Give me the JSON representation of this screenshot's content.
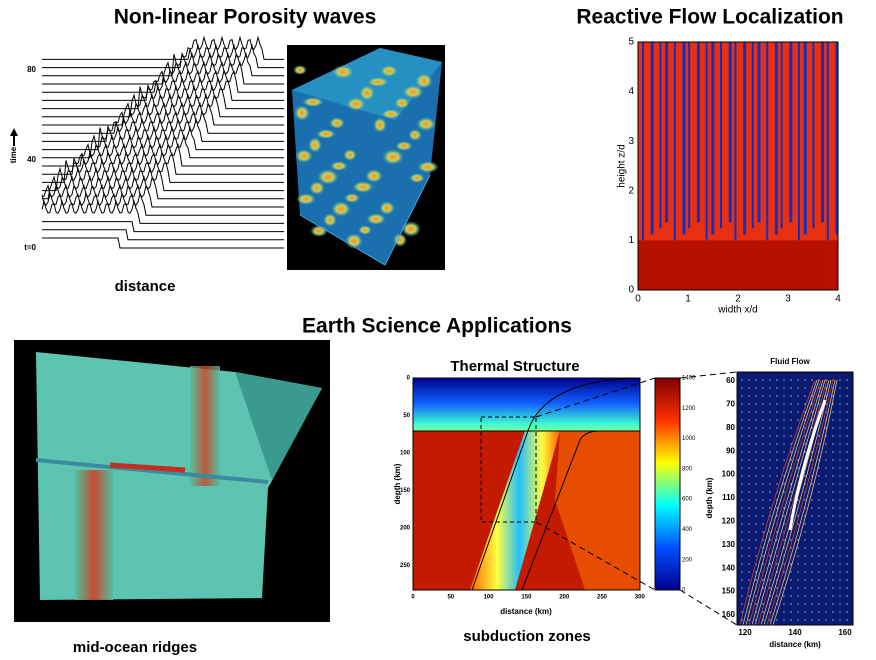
{
  "porosity": {
    "title": "Non-linear Porosity waves",
    "y_label": "time",
    "ticks": [
      "80",
      "40",
      "t=0"
    ],
    "x_label": "distance"
  },
  "reactive": {
    "title": "Reactive Flow Localization",
    "y_label": "height z/d",
    "x_label": "width x/d",
    "yticks": [
      "0",
      "1",
      "2",
      "3",
      "4",
      "5"
    ],
    "xticks": [
      "0",
      "1",
      "2",
      "3",
      "4"
    ]
  },
  "section_title": "Earth Science Applications",
  "ridges": {
    "caption": "mid-ocean ridges"
  },
  "thermal": {
    "title": "Thermal Structure",
    "y_label": "depth (km)",
    "x_label": "distance (km)",
    "yticks": [
      "0",
      "50",
      "100",
      "150",
      "200",
      "250"
    ],
    "xticks": [
      "0",
      "50",
      "100",
      "150",
      "200",
      "250",
      "300"
    ],
    "colorbar_ticks": [
      "1400",
      "1200",
      "1000",
      "800",
      "600",
      "400",
      "200",
      "0"
    ],
    "caption": "subduction zones"
  },
  "fluid": {
    "title": "Fluid Flow",
    "y_label": "depth (km)",
    "x_label": "distance (km)",
    "yticks": [
      "60",
      "70",
      "80",
      "90",
      "100",
      "110",
      "120",
      "130",
      "140",
      "150",
      "160"
    ],
    "xticks": [
      "120",
      "140",
      "160"
    ]
  }
}
